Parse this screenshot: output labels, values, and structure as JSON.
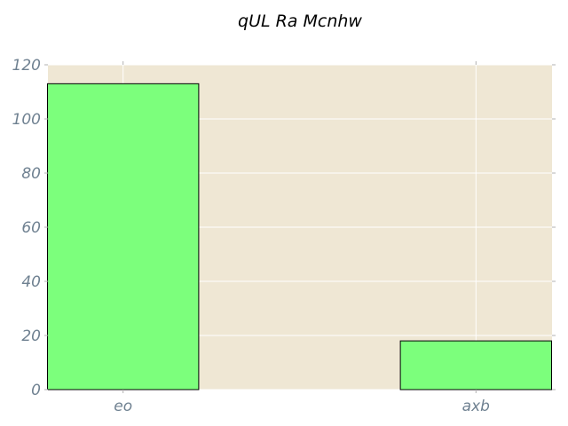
{
  "chart_data": {
    "type": "bar",
    "title": "qUL Ra  Mcnhw",
    "xlabel": "",
    "ylabel": "",
    "categories": [
      "eo",
      "axb"
    ],
    "values": [
      113,
      18
    ],
    "ylim": [
      0,
      120
    ],
    "yticks": [
      0,
      20,
      40,
      60,
      80,
      100,
      120
    ],
    "grid": true,
    "colors": {
      "plot_background": "#efe7d4",
      "bar_fill": "#7cff7c",
      "bar_edge": "#000000",
      "grid": "#ffffff",
      "tick_label": "#6f8191",
      "title": "#000000"
    }
  }
}
